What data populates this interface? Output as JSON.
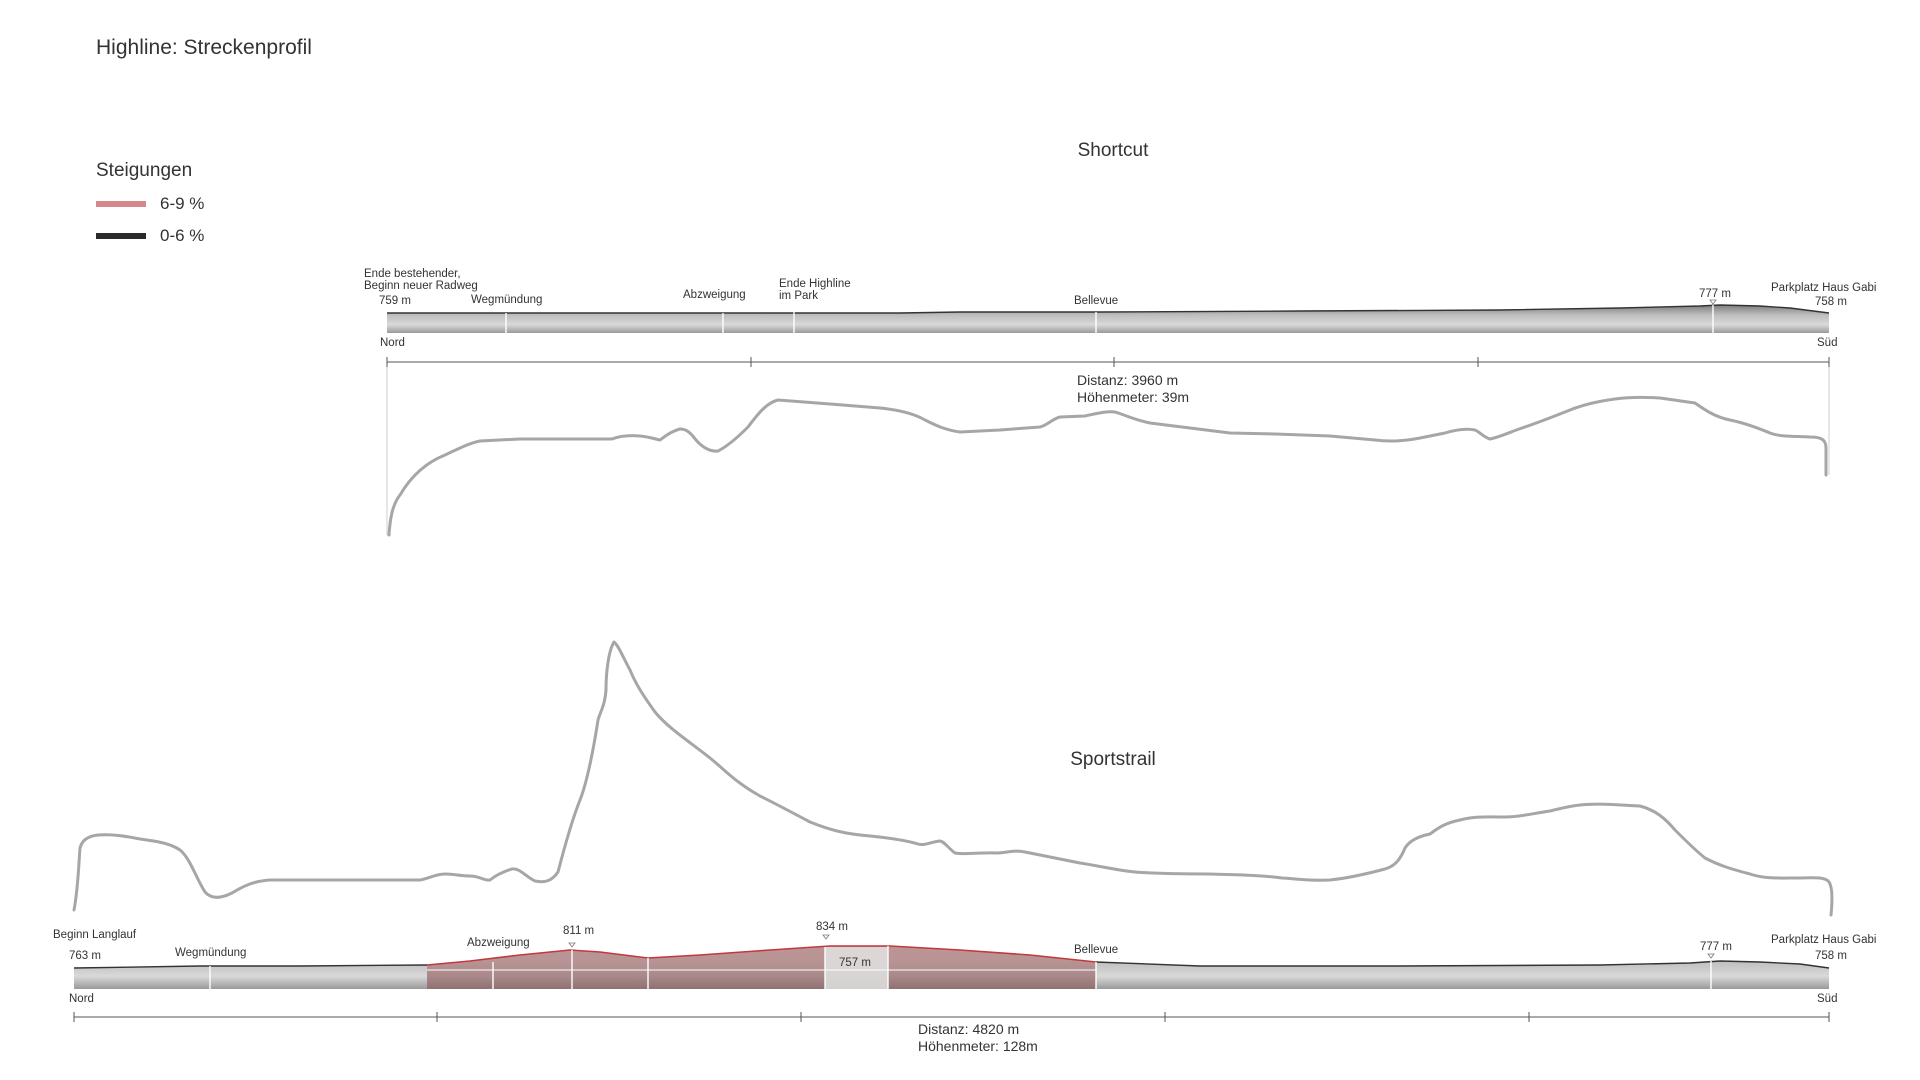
{
  "title": "Highline: Streckenprofil",
  "legend": {
    "title": "Steigungen",
    "items": [
      {
        "label": "6-9 %",
        "color": "#d4888c"
      },
      {
        "label": "0-6 %",
        "color": "#2b2b2b"
      }
    ]
  },
  "shortcut": {
    "title": "Shortcut",
    "start": {
      "line1": "Ende bestehender,",
      "line2": "Beginn neuer Radweg",
      "elevation": "759 m"
    },
    "labels": {
      "wegmuendung": "Wegmündung",
      "abzweigung": "Abzweigung",
      "ende_highline_1": "Ende Highline",
      "ende_highline_2": "im Park",
      "bellevue": "Bellevue",
      "peak": "777 m"
    },
    "end": {
      "name": "Parkplatz Haus Gabi",
      "elevation": "758 m"
    },
    "nord": "Nord",
    "sued": "Süd",
    "distance": "Distanz: 3960 m",
    "hoehenmeter": "Höhenmeter: 39m"
  },
  "sportstrail": {
    "title": "Sportstrail",
    "start": {
      "name": "Beginn Langlauf",
      "elevation": "763 m"
    },
    "labels": {
      "wegmuendung": "Wegmündung",
      "abzweigung": "Abzweigung",
      "peak1": "811 m",
      "peak2": "834 m",
      "low": "757 m",
      "bellevue": "Bellevue",
      "peak3": "777 m"
    },
    "end": {
      "name": "Parkplatz Haus Gabi",
      "elevation": "758 m"
    },
    "nord": "Nord",
    "sued": "Süd",
    "distance": "Distanz: 4820 m",
    "hoehenmeter": "Höhenmeter: 128m"
  },
  "colors": {
    "steep": "#c0393d",
    "profile_line": "#a6a6a6",
    "terrain_dark": "#8c8c8c",
    "terrain_light": "#dcdcdc"
  }
}
